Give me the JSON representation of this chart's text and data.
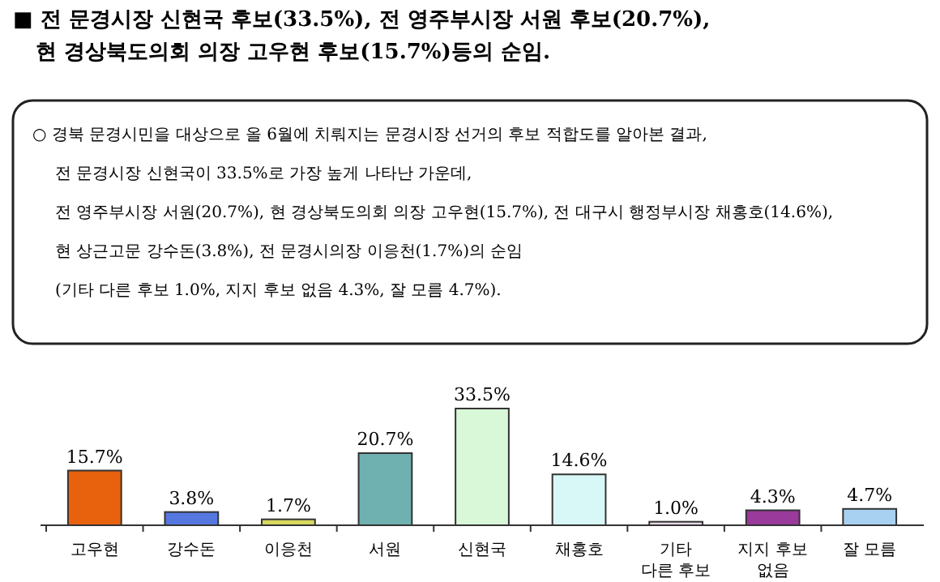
{
  "chart_data": {
    "type": "bar",
    "title": "■ 전 문경시장 신현국 후보(33.5%), 전 영주부시장 서원 후보(20.7%),\n현 경상북도의회 의장 고우현 후보(15.7%)등의 순임.",
    "annotations": [
      "○ 경북 문경시민을 대상으로 올 6월에 치뤄지는 문경시장 선거의 후보 적합도를 알아본 결과,",
      "전 문경시장 신현국이 33.5%로 가장 높게 나타난 가운데,",
      "전 영주부시장 서원(20.7%), 현 경상북도의회 의장 고우현(15.7%), 전 대구시 행정부시장 채홍호(14.6%),",
      "현 상근고문 강수돈(3.8%), 전 문경시의장 이응천(1.7%)의 순임",
      "(기타 다른 후보 1.0%, 지지 후보 없음 4.3%, 잘 모름 4.7%)."
    ],
    "categories": [
      "고우현",
      "강수돈",
      "이응천",
      "서원",
      "신현국",
      "채홍호",
      "기타\n다른 후보",
      "지지 후보\n없음",
      "잘 모름"
    ],
    "values": [
      15.7,
      3.8,
      1.7,
      20.7,
      33.5,
      14.6,
      1.0,
      4.3,
      4.7
    ],
    "value_labels": [
      "15.7%",
      "3.8%",
      "1.7%",
      "20.7%",
      "33.5%",
      "14.6%",
      "1.0%",
      "4.3%",
      "4.7%"
    ],
    "colors": [
      "#e8620e",
      "#5577e0",
      "#d8d860",
      "#6fb0b0",
      "#d8f8d8",
      "#d8f8f8",
      "#e8d8e8",
      "#9a3a9a",
      "#a8d0f0"
    ],
    "relative": false
  }
}
